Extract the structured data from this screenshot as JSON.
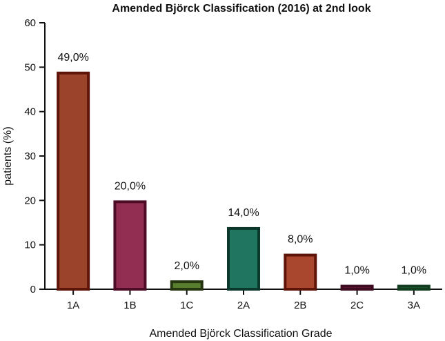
{
  "chart_data": {
    "type": "bar",
    "title": "Amended Björck Classification (2016) at 2nd look",
    "xlabel": "Amended Björck Classification Grade",
    "ylabel": "patients (%)",
    "ylim": [
      0,
      60
    ],
    "yticks": [
      0,
      10,
      20,
      30,
      40,
      50,
      60
    ],
    "grid": false,
    "categories": [
      "1A",
      "1B",
      "1C",
      "2A",
      "2B",
      "2C",
      "3A"
    ],
    "values": [
      49,
      20,
      2,
      14,
      8,
      1,
      1
    ],
    "data_labels": [
      "49,0%",
      "20,0%",
      "2,0%",
      "14,0%",
      "8,0%",
      "1,0%",
      "1,0%"
    ],
    "colors": {
      "fill": [
        "#9b432b",
        "#922e52",
        "#577f2d",
        "#1f7560",
        "#a8472d",
        "#7a2343",
        "#2b6a40"
      ],
      "stroke": [
        "#5e1408",
        "#4e0d26",
        "#243510",
        "#0a382a",
        "#5e1408",
        "#3e0a1f",
        "#123e1f"
      ]
    }
  }
}
